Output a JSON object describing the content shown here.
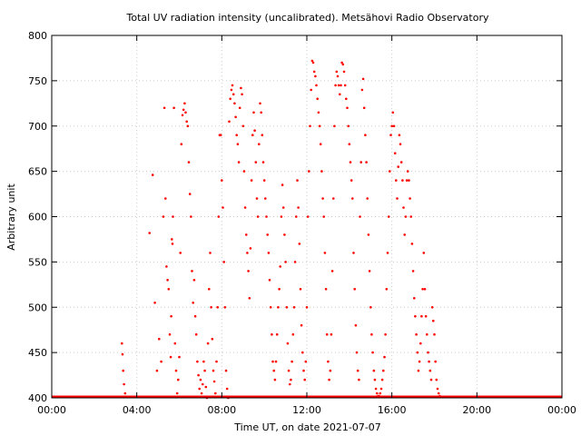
{
  "chart_data": {
    "type": "scatter",
    "title": "Total UV radiation intensity (uncalibrated). Metsähovi Radio Observatory",
    "xlabel": "Time UT, on date 2021-07-07",
    "ylabel": "Arbitrary unit",
    "xlim": [
      0,
      24
    ],
    "ylim": [
      400,
      800
    ],
    "x_ticks": [
      {
        "value": 0,
        "label": "00:00"
      },
      {
        "value": 4,
        "label": "04:00"
      },
      {
        "value": 8,
        "label": "08:00"
      },
      {
        "value": 12,
        "label": "12:00"
      },
      {
        "value": 16,
        "label": "16:00"
      },
      {
        "value": 20,
        "label": "20:00"
      },
      {
        "value": 24,
        "label": "00:00"
      }
    ],
    "y_ticks": [
      400,
      450,
      500,
      550,
      600,
      650,
      700,
      750,
      800
    ],
    "grid": true,
    "point_color": "#ff0000",
    "series": [
      {
        "points": [
          [
            3.3,
            460
          ],
          [
            3.33,
            448
          ],
          [
            3.36,
            430
          ],
          [
            3.4,
            415
          ],
          [
            3.45,
            405
          ],
          [
            4.6,
            582
          ],
          [
            4.75,
            646
          ],
          [
            4.85,
            505
          ],
          [
            4.95,
            430
          ],
          [
            5.05,
            465
          ],
          [
            5.15,
            440
          ],
          [
            5.25,
            600
          ],
          [
            5.3,
            720
          ],
          [
            5.35,
            620
          ],
          [
            5.4,
            545
          ],
          [
            5.45,
            530
          ],
          [
            5.5,
            520
          ],
          [
            5.55,
            470
          ],
          [
            5.6,
            445
          ],
          [
            5.62,
            490
          ],
          [
            5.65,
            575
          ],
          [
            5.68,
            570
          ],
          [
            5.7,
            600
          ],
          [
            5.75,
            720
          ],
          [
            5.8,
            460
          ],
          [
            5.85,
            430
          ],
          [
            5.9,
            405
          ],
          [
            5.95,
            420
          ],
          [
            6.0,
            445
          ],
          [
            6.05,
            560
          ],
          [
            6.1,
            680
          ],
          [
            6.15,
            712
          ],
          [
            6.2,
            718
          ],
          [
            6.25,
            725
          ],
          [
            6.3,
            715
          ],
          [
            6.35,
            705
          ],
          [
            6.4,
            700
          ],
          [
            6.45,
            660
          ],
          [
            6.5,
            625
          ],
          [
            6.55,
            600
          ],
          [
            6.6,
            540
          ],
          [
            6.65,
            505
          ],
          [
            6.7,
            530
          ],
          [
            6.75,
            490
          ],
          [
            6.8,
            470
          ],
          [
            6.85,
            440
          ],
          [
            6.9,
            425
          ],
          [
            6.95,
            410
          ],
          [
            7.0,
            420
          ],
          [
            7.05,
            405
          ],
          [
            7.1,
            415
          ],
          [
            7.15,
            440
          ],
          [
            7.2,
            430
          ],
          [
            7.25,
            412
          ],
          [
            7.3,
            400
          ],
          [
            7.35,
            460
          ],
          [
            7.4,
            520
          ],
          [
            7.45,
            560
          ],
          [
            7.5,
            500
          ],
          [
            7.55,
            465
          ],
          [
            7.6,
            430
          ],
          [
            7.65,
            418
          ],
          [
            7.7,
            405
          ],
          [
            7.75,
            440
          ],
          [
            7.8,
            500
          ],
          [
            7.85,
            600
          ],
          [
            7.9,
            690
          ],
          [
            7.95,
            690
          ],
          [
            8.0,
            640
          ],
          [
            8.05,
            610
          ],
          [
            8.1,
            550
          ],
          [
            8.15,
            500
          ],
          [
            8.2,
            430
          ],
          [
            8.25,
            410
          ],
          [
            8.3,
            400
          ],
          [
            8.35,
            705
          ],
          [
            8.4,
            730
          ],
          [
            8.45,
            740
          ],
          [
            8.5,
            745
          ],
          [
            8.55,
            735
          ],
          [
            8.6,
            725
          ],
          [
            8.65,
            710
          ],
          [
            8.7,
            690
          ],
          [
            8.75,
            680
          ],
          [
            8.8,
            660
          ],
          [
            8.85,
            720
          ],
          [
            8.9,
            742
          ],
          [
            8.95,
            735
          ],
          [
            9.0,
            700
          ],
          [
            9.05,
            650
          ],
          [
            9.1,
            610
          ],
          [
            9.15,
            580
          ],
          [
            9.2,
            560
          ],
          [
            9.25,
            540
          ],
          [
            9.3,
            510
          ],
          [
            9.35,
            565
          ],
          [
            9.4,
            640
          ],
          [
            9.45,
            690
          ],
          [
            9.5,
            715
          ],
          [
            9.55,
            695
          ],
          [
            9.6,
            660
          ],
          [
            9.65,
            620
          ],
          [
            9.7,
            600
          ],
          [
            9.75,
            680
          ],
          [
            9.8,
            725
          ],
          [
            9.85,
            715
          ],
          [
            9.9,
            690
          ],
          [
            9.95,
            660
          ],
          [
            10.0,
            640
          ],
          [
            10.05,
            620
          ],
          [
            10.1,
            600
          ],
          [
            10.15,
            580
          ],
          [
            10.2,
            560
          ],
          [
            10.25,
            530
          ],
          [
            10.3,
            500
          ],
          [
            10.35,
            470
          ],
          [
            10.4,
            440
          ],
          [
            10.45,
            430
          ],
          [
            10.5,
            420
          ],
          [
            10.55,
            440
          ],
          [
            10.6,
            470
          ],
          [
            10.65,
            500
          ],
          [
            10.7,
            520
          ],
          [
            10.75,
            545
          ],
          [
            10.8,
            600
          ],
          [
            10.85,
            635
          ],
          [
            10.9,
            610
          ],
          [
            10.95,
            580
          ],
          [
            11.0,
            550
          ],
          [
            11.05,
            500
          ],
          [
            11.1,
            460
          ],
          [
            11.15,
            430
          ],
          [
            11.2,
            415
          ],
          [
            11.25,
            420
          ],
          [
            11.3,
            440
          ],
          [
            11.35,
            470
          ],
          [
            11.4,
            500
          ],
          [
            11.45,
            550
          ],
          [
            11.5,
            600
          ],
          [
            11.55,
            640
          ],
          [
            11.6,
            610
          ],
          [
            11.65,
            570
          ],
          [
            11.7,
            520
          ],
          [
            11.75,
            480
          ],
          [
            11.8,
            450
          ],
          [
            11.85,
            430
          ],
          [
            11.9,
            420
          ],
          [
            11.95,
            440
          ],
          [
            12.0,
            500
          ],
          [
            12.05,
            600
          ],
          [
            12.1,
            650
          ],
          [
            12.15,
            700
          ],
          [
            12.2,
            740
          ],
          [
            12.25,
            772
          ],
          [
            12.3,
            770
          ],
          [
            12.35,
            760
          ],
          [
            12.4,
            755
          ],
          [
            12.45,
            745
          ],
          [
            12.5,
            730
          ],
          [
            12.55,
            715
          ],
          [
            12.6,
            700
          ],
          [
            12.65,
            680
          ],
          [
            12.7,
            650
          ],
          [
            12.75,
            620
          ],
          [
            12.8,
            600
          ],
          [
            12.85,
            560
          ],
          [
            12.9,
            520
          ],
          [
            12.95,
            470
          ],
          [
            13.0,
            440
          ],
          [
            13.05,
            420
          ],
          [
            13.1,
            430
          ],
          [
            13.15,
            470
          ],
          [
            13.2,
            540
          ],
          [
            13.25,
            620
          ],
          [
            13.3,
            700
          ],
          [
            13.35,
            745
          ],
          [
            13.4,
            760
          ],
          [
            13.45,
            755
          ],
          [
            13.5,
            745
          ],
          [
            13.55,
            735
          ],
          [
            13.6,
            745
          ],
          [
            13.65,
            770
          ],
          [
            13.7,
            768
          ],
          [
            13.75,
            760
          ],
          [
            13.8,
            745
          ],
          [
            13.85,
            730
          ],
          [
            13.9,
            720
          ],
          [
            13.95,
            700
          ],
          [
            14.0,
            680
          ],
          [
            14.05,
            660
          ],
          [
            14.1,
            640
          ],
          [
            14.15,
            620
          ],
          [
            14.2,
            560
          ],
          [
            14.25,
            520
          ],
          [
            14.3,
            480
          ],
          [
            14.35,
            450
          ],
          [
            14.4,
            430
          ],
          [
            14.45,
            420
          ],
          [
            14.5,
            600
          ],
          [
            14.55,
            660
          ],
          [
            14.6,
            740
          ],
          [
            14.65,
            752
          ],
          [
            14.7,
            720
          ],
          [
            14.75,
            690
          ],
          [
            14.8,
            660
          ],
          [
            14.85,
            620
          ],
          [
            14.9,
            580
          ],
          [
            14.95,
            540
          ],
          [
            15.0,
            500
          ],
          [
            15.05,
            470
          ],
          [
            15.1,
            450
          ],
          [
            15.15,
            430
          ],
          [
            15.2,
            420
          ],
          [
            15.25,
            410
          ],
          [
            15.3,
            405
          ],
          [
            15.35,
            402
          ],
          [
            15.4,
            402
          ],
          [
            15.45,
            405
          ],
          [
            15.5,
            410
          ],
          [
            15.55,
            420
          ],
          [
            15.6,
            430
          ],
          [
            15.65,
            445
          ],
          [
            15.7,
            470
          ],
          [
            15.75,
            520
          ],
          [
            15.8,
            560
          ],
          [
            15.85,
            600
          ],
          [
            15.9,
            650
          ],
          [
            15.95,
            690
          ],
          [
            16.0,
            700
          ],
          [
            16.05,
            715
          ],
          [
            16.1,
            700
          ],
          [
            16.15,
            670
          ],
          [
            16.2,
            640
          ],
          [
            16.25,
            620
          ],
          [
            16.3,
            655
          ],
          [
            16.35,
            690
          ],
          [
            16.4,
            680
          ],
          [
            16.45,
            660
          ],
          [
            16.5,
            640
          ],
          [
            16.55,
            610
          ],
          [
            16.6,
            580
          ],
          [
            16.65,
            600
          ],
          [
            16.7,
            640
          ],
          [
            16.75,
            650
          ],
          [
            16.8,
            640
          ],
          [
            16.85,
            620
          ],
          [
            16.9,
            600
          ],
          [
            16.95,
            570
          ],
          [
            17.0,
            540
          ],
          [
            17.05,
            510
          ],
          [
            17.1,
            490
          ],
          [
            17.15,
            470
          ],
          [
            17.2,
            450
          ],
          [
            17.25,
            430
          ],
          [
            17.3,
            440
          ],
          [
            17.35,
            460
          ],
          [
            17.4,
            490
          ],
          [
            17.45,
            520
          ],
          [
            17.5,
            560
          ],
          [
            17.55,
            520
          ],
          [
            17.6,
            490
          ],
          [
            17.65,
            470
          ],
          [
            17.7,
            450
          ],
          [
            17.75,
            440
          ],
          [
            17.8,
            430
          ],
          [
            17.85,
            420
          ],
          [
            17.9,
            500
          ],
          [
            17.95,
            485
          ],
          [
            18.0,
            470
          ],
          [
            18.05,
            440
          ],
          [
            18.1,
            420
          ],
          [
            18.15,
            410
          ],
          [
            18.2,
            405
          ],
          [
            18.25,
            402
          ],
          [
            18.35,
            401
          ]
        ]
      }
    ]
  }
}
